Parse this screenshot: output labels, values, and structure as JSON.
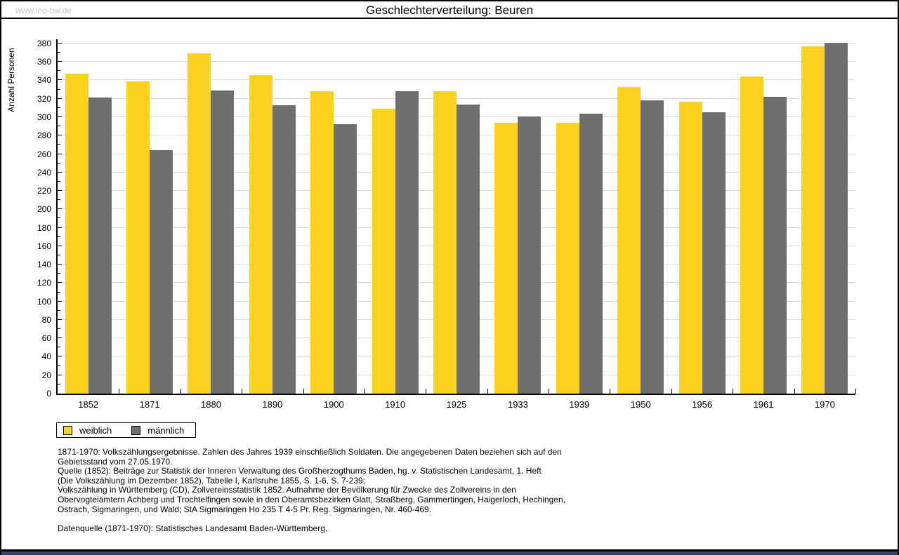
{
  "page": {
    "watermark": "www.leo-bw.de",
    "title": "Geschlechterverteilung: Beuren",
    "colors": {
      "female": "#FCD21E",
      "male": "#6F6F6F",
      "gridline": "#DCDCDC",
      "watermark": "#C5C5C5",
      "bottom_bar": "#3A4162"
    }
  },
  "chart_data": {
    "type": "bar",
    "title": "Geschlechterverteilung: Beuren",
    "xlabel": "",
    "ylabel": "Anzahl Personen",
    "ylim": [
      0,
      380
    ],
    "ytick_step": 20,
    "ytick_minor_step": 10,
    "grid": true,
    "legend_position": "bottom-left",
    "categories": [
      "1852",
      "1871",
      "1880",
      "1890",
      "1900",
      "1910",
      "1925",
      "1933",
      "1939",
      "1950",
      "1956",
      "1961",
      "1970"
    ],
    "series": [
      {
        "name": "weiblich",
        "color": "#FCD21E",
        "values": [
          347,
          339,
          369,
          346,
          328,
          309,
          328,
          294,
          294,
          333,
          317,
          344,
          377
        ]
      },
      {
        "name": "männlich",
        "color": "#6F6F6F",
        "values": [
          321,
          264,
          329,
          313,
          292,
          328,
          314,
          301,
          304,
          318,
          305,
          322,
          381
        ]
      }
    ]
  },
  "footnotes": {
    "lines": [
      "1871-1970: Volkszählungsergebnisse. Zahlen des Jahres 1939 einschließlich Soldaten. Die angegebenen Daten beziehen sich auf den",
      "Gebietsstand vom 27.05.1970.",
      "Quelle (1852): Beiträge zur Statistik der Inneren Verwaltung des Großherzogthums Baden, hg. v. Statistischen Landesamt, 1. Heft",
      "(Die Volkszählung im Dezember 1852), Tabelle I, Karlsruhe 1855, S. 1-6, S. 7-239;",
      "Volkszählung in Württemberg (CD), Zollvereinsstatistik 1852. Aufnahme der Bevölkerung für Zwecke des Zollvereins in den",
      "Obervogteiämtern Achberg und Trochtelfingen sowie in den Oberamtsbezirken Glatt, Straßberg, Gammertingen, Haigerloch, Hechingen,",
      "Ostrach, Sigmaringen, und Wald; StA Sigmaringen Ho 235 T 4-5 Pr. Reg. Sigmaringen, Nr. 460-469."
    ],
    "datasource": "Datenquelle (1871-1970): Statistisches Landesamt Baden-Württemberg."
  }
}
